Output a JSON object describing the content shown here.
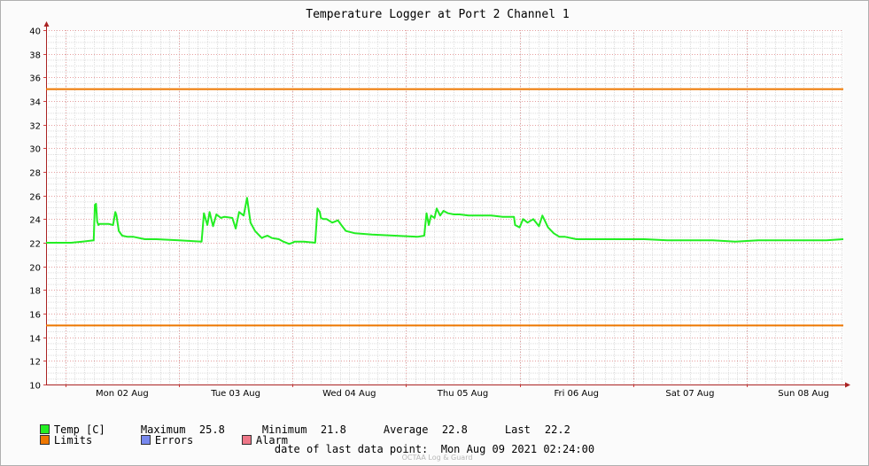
{
  "chart_data": {
    "type": "line",
    "title": "Temperature Logger at Port 2 Channel 1",
    "xlabel": "",
    "ylabel": "",
    "ylim": [
      10,
      40
    ],
    "y_ticks": [
      10,
      12,
      14,
      16,
      18,
      20,
      22,
      24,
      26,
      28,
      30,
      32,
      34,
      36,
      38,
      40
    ],
    "x_tick_labels": [
      "Mon 02 Aug",
      "Tue 03 Aug",
      "Wed 04 Aug",
      "Thu 05 Aug",
      "Fri 06 Aug",
      "Sat 07 Aug",
      "Sun 08 Aug"
    ],
    "x_unit": "days since Mon 02 Aug 00:00",
    "xlim": [
      -0.17,
      6.85
    ],
    "grid": true,
    "series": [
      {
        "name": "Temp [C]",
        "color": "#22ee22",
        "x": [
          -0.17,
          0.05,
          0.15,
          0.25,
          0.26,
          0.27,
          0.28,
          0.29,
          0.3,
          0.32,
          0.38,
          0.42,
          0.44,
          0.45,
          0.47,
          0.5,
          0.55,
          0.6,
          0.7,
          0.8,
          1.0,
          1.2,
          1.22,
          1.25,
          1.27,
          1.3,
          1.33,
          1.37,
          1.4,
          1.47,
          1.5,
          1.53,
          1.57,
          1.6,
          1.63,
          1.67,
          1.7,
          1.73,
          1.75,
          1.78,
          1.82,
          1.88,
          1.92,
          1.97,
          2.0,
          2.02,
          2.1,
          2.2,
          2.22,
          2.24,
          2.25,
          2.27,
          2.3,
          2.35,
          2.4,
          2.43,
          2.47,
          2.55,
          2.7,
          2.9,
          3.1,
          3.16,
          3.18,
          3.2,
          3.22,
          3.25,
          3.27,
          3.3,
          3.33,
          3.37,
          3.42,
          3.47,
          3.55,
          3.65,
          3.75,
          3.85,
          3.95,
          3.96,
          4.0,
          4.03,
          4.07,
          4.12,
          4.17,
          4.2,
          4.25,
          4.3,
          4.35,
          4.4,
          4.5,
          4.7,
          4.9,
          5.1,
          5.3,
          5.5,
          5.7,
          5.9,
          6.1,
          6.3,
          6.5,
          6.7,
          6.85
        ],
        "values": [
          22.0,
          22.0,
          22.1,
          22.2,
          25.2,
          25.3,
          23.8,
          23.5,
          23.6,
          23.6,
          23.6,
          23.5,
          24.6,
          24.3,
          23.0,
          22.6,
          22.5,
          22.5,
          22.3,
          22.3,
          22.2,
          22.1,
          24.5,
          23.5,
          24.6,
          23.4,
          24.4,
          24.1,
          24.2,
          24.1,
          23.2,
          24.6,
          24.3,
          25.8,
          23.7,
          23.0,
          22.7,
          22.4,
          22.5,
          22.6,
          22.4,
          22.3,
          22.1,
          21.9,
          22.0,
          22.1,
          22.1,
          22.0,
          24.9,
          24.6,
          24.1,
          24.0,
          24.0,
          23.7,
          23.9,
          23.5,
          23.0,
          22.8,
          22.7,
          22.6,
          22.5,
          22.6,
          24.5,
          23.5,
          24.3,
          24.1,
          24.9,
          24.3,
          24.7,
          24.5,
          24.4,
          24.4,
          24.3,
          24.3,
          24.3,
          24.2,
          24.2,
          23.5,
          23.3,
          24.0,
          23.7,
          24.0,
          23.4,
          24.3,
          23.3,
          22.8,
          22.5,
          22.5,
          22.3,
          22.3,
          22.3,
          22.3,
          22.2,
          22.2,
          22.2,
          22.1,
          22.2,
          22.2,
          22.2,
          22.2,
          22.3
        ]
      },
      {
        "name": "Limits",
        "color": "#ee7700",
        "values": [
          35,
          15
        ]
      }
    ]
  },
  "legend": {
    "temp": {
      "label": "Temp [C]",
      "color": "#22ee22"
    },
    "limits": {
      "label": "Limits",
      "color": "#ee7700"
    },
    "errors": {
      "label": "Errors",
      "color": "#7788ee"
    },
    "alarm": {
      "label": "Alarm",
      "color": "#ee7788"
    }
  },
  "stats": {
    "maximum_label": "Maximum",
    "maximum": "25.8",
    "minimum_label": "Minimum",
    "minimum": "21.8",
    "average_label": "Average",
    "average": "22.8",
    "last_label": "Last",
    "last": "22.2"
  },
  "footer": {
    "label": "date of last data point:",
    "value": "Mon Aug 09 2021 02:24:00"
  },
  "watermark": "OCTAA Log & Guard"
}
